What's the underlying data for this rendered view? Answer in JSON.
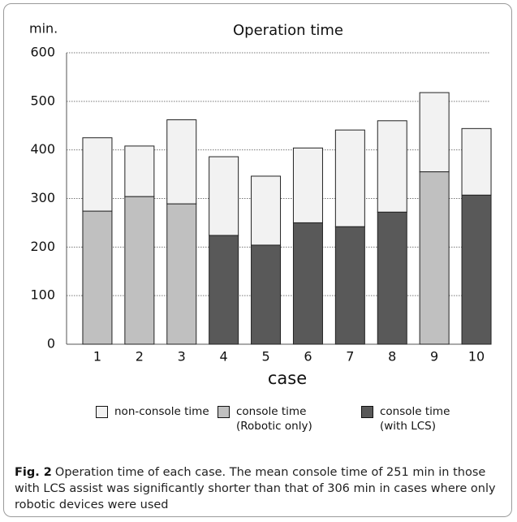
{
  "chart_data": {
    "type": "stacked_bar",
    "title": "Operation time",
    "ylabel": "min.",
    "xlabel": "case",
    "categories": [
      "1",
      "2",
      "3",
      "4",
      "5",
      "6",
      "7",
      "8",
      "9",
      "10"
    ],
    "series": [
      {
        "name": "non-console time",
        "color": "#f2f2f2",
        "values": [
          151,
          104,
          173,
          162,
          142,
          154,
          199,
          188,
          163,
          137
        ]
      },
      {
        "name": "console time (Robotic only)",
        "color": "#c0c0c0",
        "values": [
          274,
          304,
          289,
          null,
          null,
          null,
          null,
          null,
          355,
          null
        ]
      },
      {
        "name": "console time (with LCS)",
        "color": "#595959",
        "values": [
          null,
          null,
          null,
          224,
          204,
          250,
          242,
          272,
          null,
          307
        ]
      }
    ],
    "ylim": [
      0,
      600
    ],
    "yticks": [
      0,
      100,
      200,
      300,
      400,
      500,
      600
    ],
    "grid": true
  },
  "caption": {
    "label": "Fig. 2",
    "text": "Operation time of each case. The mean console time of 251 min in those with LCS assist was significantly shorter than that of 306 min in cases where only robotic devices were used"
  }
}
